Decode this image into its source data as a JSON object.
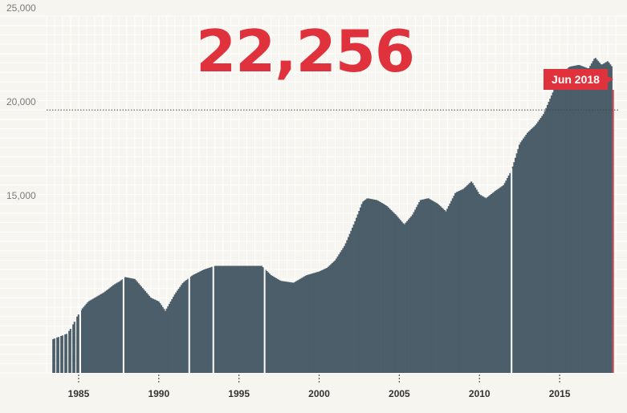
{
  "headline_value": "22,256",
  "callout_label": "Jun 2018",
  "colors": {
    "bar": "#4b5e6a",
    "accent": "#e0323c",
    "grid": "#ffffff",
    "background": "#f6f5f0",
    "axis_text": "#7a7a7a",
    "year_text": "#333333"
  },
  "chart_data": {
    "type": "bar",
    "title": "",
    "xlabel": "",
    "ylabel": "",
    "ylim": [
      6000,
      25000
    ],
    "xlim": [
      1983.0,
      2018.7
    ],
    "grid": true,
    "y_ticks": [
      {
        "value": 15000,
        "label": "15,000"
      },
      {
        "value": 20000,
        "label": "20,000"
      },
      {
        "value": 25000,
        "label": "25,000"
      }
    ],
    "x_ticks": [
      {
        "value": 1985,
        "label": "1985"
      },
      {
        "value": 1990,
        "label": "1990"
      },
      {
        "value": 1995,
        "label": "1995"
      },
      {
        "value": 2000,
        "label": "2000"
      },
      {
        "value": 2005,
        "label": "2005"
      },
      {
        "value": 2010,
        "label": "2010"
      },
      {
        "value": 2015,
        "label": "2015"
      }
    ],
    "reference_line": {
      "value": 20000,
      "style": "dotted"
    },
    "gaps": [
      1985.1,
      1987.8,
      1991.9,
      1993.4,
      1996.6,
      2012.0
    ],
    "series": [
      {
        "x": [
          1983.4,
          1983.7,
          1984.0,
          1984.3,
          1984.6,
          1984.9,
          1985.2,
          1985.6,
          1986.0,
          1986.6,
          1987.2,
          1987.6,
          1987.9,
          1988.5,
          1989.0,
          1989.5,
          1990.0,
          1990.4,
          1991.0,
          1991.5,
          1992.1,
          1992.8,
          1993.5,
          1994.5,
          1995.0,
          1995.8,
          1996.4,
          1997.0,
          1997.6,
          1998.4,
          1999.2,
          2000.0,
          2000.5,
          2001.0,
          2001.6,
          2002.2,
          2002.7,
          2003.0,
          2003.6,
          2004.2,
          2004.8,
          2005.3,
          2005.8,
          2006.3,
          2006.8,
          2007.4,
          2007.9,
          2008.5,
          2009.0,
          2009.5,
          2010.0,
          2010.4,
          2011.0,
          2011.5,
          2012.0,
          2012.5,
          2013.0,
          2013.5,
          2014.0,
          2014.5,
          2015.0,
          2015.6,
          2016.2,
          2016.8,
          2017.2,
          2017.6,
          2018.0,
          2018.3
        ],
        "values": [
          7800,
          7900,
          8000,
          8100,
          8500,
          9000,
          9400,
          9800,
          10000,
          10300,
          10700,
          10900,
          11100,
          11000,
          10500,
          10000,
          9800,
          9300,
          10200,
          10800,
          11200,
          11500,
          11700,
          11700,
          11700,
          11700,
          11700,
          11200,
          10900,
          10800,
          11200,
          11400,
          11600,
          12000,
          12800,
          14000,
          15100,
          15300,
          15200,
          14900,
          14400,
          13900,
          14400,
          15200,
          15300,
          15000,
          14600,
          15600,
          15800,
          16200,
          15500,
          15300,
          15700,
          16000,
          16800,
          18200,
          18800,
          19200,
          19800,
          20800,
          21800,
          22300,
          22400,
          22200,
          22800,
          22400,
          22600,
          22256
        ]
      }
    ]
  }
}
